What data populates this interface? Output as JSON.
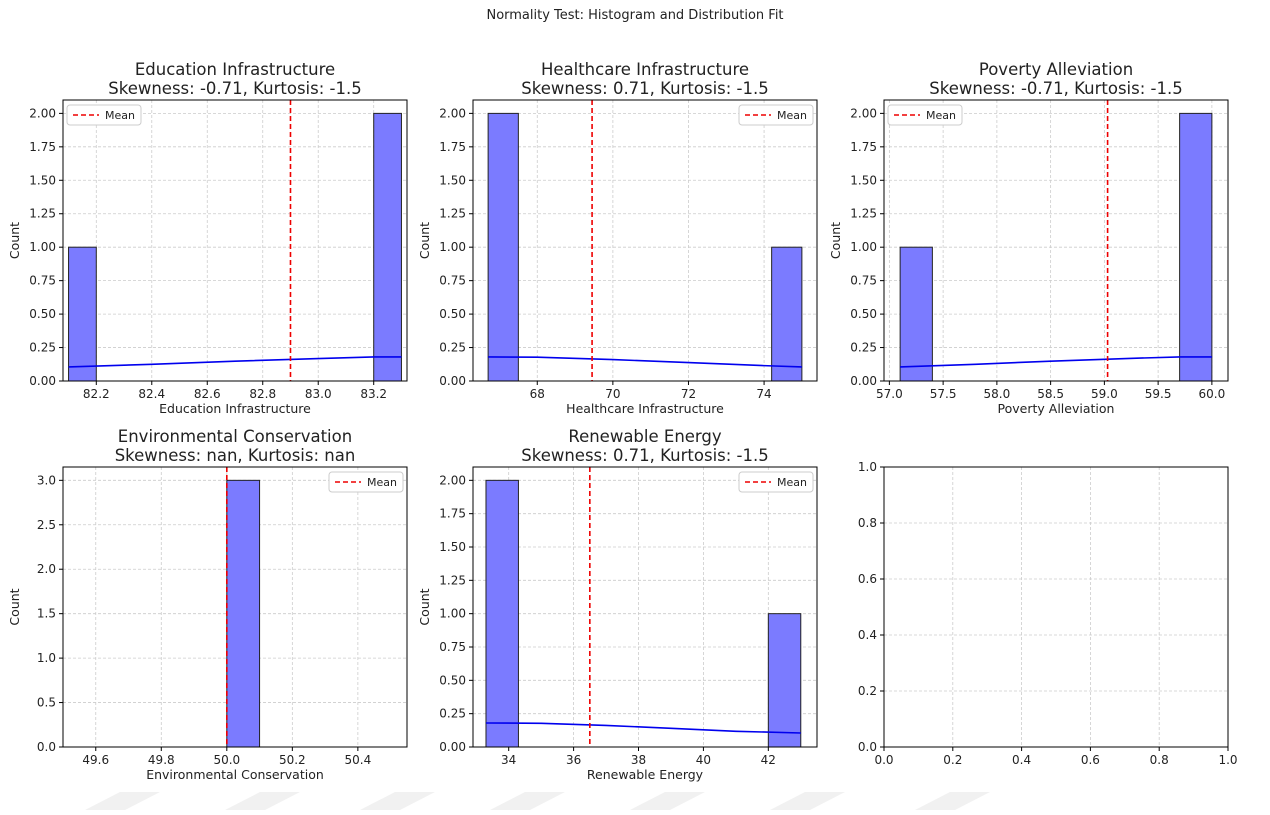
{
  "figure": {
    "suptitle": "Normality Test: Histogram and Distribution Fit",
    "colors": {
      "bar_fill": "#7b7bff",
      "bar_edge": "#222222",
      "kde_line": "#0000ee",
      "mean_line": "#ee0000",
      "grid": "#cccccc"
    }
  },
  "chart_data": [
    {
      "type": "bar",
      "title": "Education Infrastructure",
      "subtitle": "Skewness: -0.71, Kurtosis: -1.5",
      "xlabel": "Education Infrastructure",
      "ylabel": "Count",
      "xlim": [
        82.08,
        83.32
      ],
      "ylim": [
        0,
        2.1
      ],
      "xticks": [
        82.2,
        82.4,
        82.6,
        82.8,
        83.0,
        83.2
      ],
      "xtick_labels": [
        "82.2",
        "82.4",
        "82.6",
        "82.8",
        "83.0",
        "83.2"
      ],
      "yticks": [
        0,
        0.25,
        0.5,
        0.75,
        1.0,
        1.25,
        1.5,
        1.75,
        2.0
      ],
      "ytick_labels": [
        "0.00",
        "0.25",
        "0.50",
        "0.75",
        "1.00",
        "1.25",
        "1.50",
        "1.75",
        "2.00"
      ],
      "bins": [
        {
          "x0": 82.1,
          "x1": 82.2,
          "count": 1
        },
        {
          "x0": 83.2,
          "x1": 83.3,
          "count": 2
        }
      ],
      "mean": 82.9,
      "kde": {
        "x": [
          82.1,
          82.4,
          82.7,
          83.0,
          83.2,
          83.3
        ],
        "y": [
          0.105,
          0.125,
          0.148,
          0.168,
          0.18,
          0.18
        ]
      },
      "legend": {
        "label": "Mean",
        "position": "upper-left"
      },
      "grid": true
    },
    {
      "type": "bar",
      "title": "Healthcare Infrastructure",
      "subtitle": "Skewness: 0.71, Kurtosis: -1.5",
      "xlabel": "Healthcare Infrastructure",
      "ylabel": "Count",
      "xlim": [
        66.3,
        75.4
      ],
      "ylim": [
        0,
        2.1
      ],
      "xticks": [
        68,
        70,
        72,
        74
      ],
      "xtick_labels": [
        "68",
        "70",
        "72",
        "74"
      ],
      "yticks": [
        0,
        0.25,
        0.5,
        0.75,
        1.0,
        1.25,
        1.5,
        1.75,
        2.0
      ],
      "ytick_labels": [
        "0.00",
        "0.25",
        "0.50",
        "0.75",
        "1.00",
        "1.25",
        "1.50",
        "1.75",
        "2.00"
      ],
      "bins": [
        {
          "x0": 66.7,
          "x1": 67.5,
          "count": 2
        },
        {
          "x0": 74.2,
          "x1": 75.0,
          "count": 1
        }
      ],
      "mean": 69.45,
      "kde": {
        "x": [
          66.7,
          68.0,
          70.0,
          72.0,
          74.0,
          75.0
        ],
        "y": [
          0.18,
          0.178,
          0.16,
          0.138,
          0.115,
          0.105
        ]
      },
      "legend": {
        "label": "Mean",
        "position": "upper-right"
      },
      "grid": true
    },
    {
      "type": "bar",
      "title": "Poverty Alleviation",
      "subtitle": "Skewness: -0.71, Kurtosis: -1.5",
      "xlabel": "Poverty Alleviation",
      "ylabel": "Count",
      "xlim": [
        56.95,
        60.15
      ],
      "ylim": [
        0,
        2.1
      ],
      "xticks": [
        57.0,
        57.5,
        58.0,
        58.5,
        59.0,
        59.5,
        60.0
      ],
      "xtick_labels": [
        "57.0",
        "57.5",
        "58.0",
        "58.5",
        "59.0",
        "59.5",
        "60.0"
      ],
      "yticks": [
        0,
        0.25,
        0.5,
        0.75,
        1.0,
        1.25,
        1.5,
        1.75,
        2.0
      ],
      "ytick_labels": [
        "0.00",
        "0.25",
        "0.50",
        "0.75",
        "1.00",
        "1.25",
        "1.50",
        "1.75",
        "2.00"
      ],
      "bins": [
        {
          "x0": 57.1,
          "x1": 57.4,
          "count": 1
        },
        {
          "x0": 59.7,
          "x1": 60.0,
          "count": 2
        }
      ],
      "mean": 59.03,
      "kde": {
        "x": [
          57.1,
          57.8,
          58.5,
          59.2,
          59.7,
          60.0
        ],
        "y": [
          0.105,
          0.125,
          0.148,
          0.168,
          0.18,
          0.18
        ]
      },
      "legend": {
        "label": "Mean",
        "position": "upper-left"
      },
      "grid": true
    },
    {
      "type": "bar",
      "title": "Environmental Conservation",
      "subtitle": "Skewness: nan, Kurtosis: nan",
      "xlabel": "Environmental Conservation",
      "ylabel": "Count",
      "xlim": [
        49.5,
        50.55
      ],
      "ylim": [
        0,
        3.15
      ],
      "xticks": [
        49.6,
        49.8,
        50.0,
        50.2,
        50.4
      ],
      "xtick_labels": [
        "49.6",
        "49.8",
        "50.0",
        "50.2",
        "50.4"
      ],
      "yticks": [
        0,
        0.5,
        1.0,
        1.5,
        2.0,
        2.5,
        3.0
      ],
      "ytick_labels": [
        "0.0",
        "0.5",
        "1.0",
        "1.5",
        "2.0",
        "2.5",
        "3.0"
      ],
      "bins": [
        {
          "x0": 50.0,
          "x1": 50.1,
          "count": 3
        }
      ],
      "mean": 50.0,
      "legend": {
        "label": "Mean",
        "position": "upper-right"
      },
      "grid": true
    },
    {
      "type": "bar",
      "title": "Renewable Energy",
      "subtitle": "Skewness: 0.71, Kurtosis: -1.5",
      "xlabel": "Renewable Energy",
      "ylabel": "Count",
      "xlim": [
        32.9,
        43.5
      ],
      "ylim": [
        0,
        2.1
      ],
      "xticks": [
        34,
        36,
        38,
        40,
        42
      ],
      "xtick_labels": [
        "34",
        "36",
        "38",
        "40",
        "42"
      ],
      "yticks": [
        0,
        0.25,
        0.5,
        0.75,
        1.0,
        1.25,
        1.5,
        1.75,
        2.0
      ],
      "ytick_labels": [
        "0.00",
        "0.25",
        "0.50",
        "0.75",
        "1.00",
        "1.25",
        "1.50",
        "1.75",
        "2.00"
      ],
      "bins": [
        {
          "x0": 33.3,
          "x1": 34.3,
          "count": 2
        },
        {
          "x0": 42.0,
          "x1": 43.0,
          "count": 1
        }
      ],
      "mean": 36.5,
      "kde": {
        "x": [
          33.3,
          35.0,
          37.0,
          39.0,
          41.0,
          43.0
        ],
        "y": [
          0.18,
          0.178,
          0.162,
          0.14,
          0.118,
          0.105
        ]
      },
      "legend": {
        "label": "Mean",
        "position": "upper-right"
      },
      "grid": true
    },
    {
      "type": "bar",
      "title": "",
      "subtitle": "",
      "xlabel": "",
      "ylabel": "",
      "xlim": [
        0,
        1
      ],
      "ylim": [
        0,
        1
      ],
      "xticks": [
        0.0,
        0.2,
        0.4,
        0.6,
        0.8,
        1.0
      ],
      "xtick_labels": [
        "0.0",
        "0.2",
        "0.4",
        "0.6",
        "0.8",
        "1.0"
      ],
      "yticks": [
        0.0,
        0.2,
        0.4,
        0.6,
        0.8,
        1.0
      ],
      "ytick_labels": [
        "0.0",
        "0.2",
        "0.4",
        "0.6",
        "0.8",
        "1.0"
      ],
      "bins": [],
      "grid": true
    }
  ]
}
